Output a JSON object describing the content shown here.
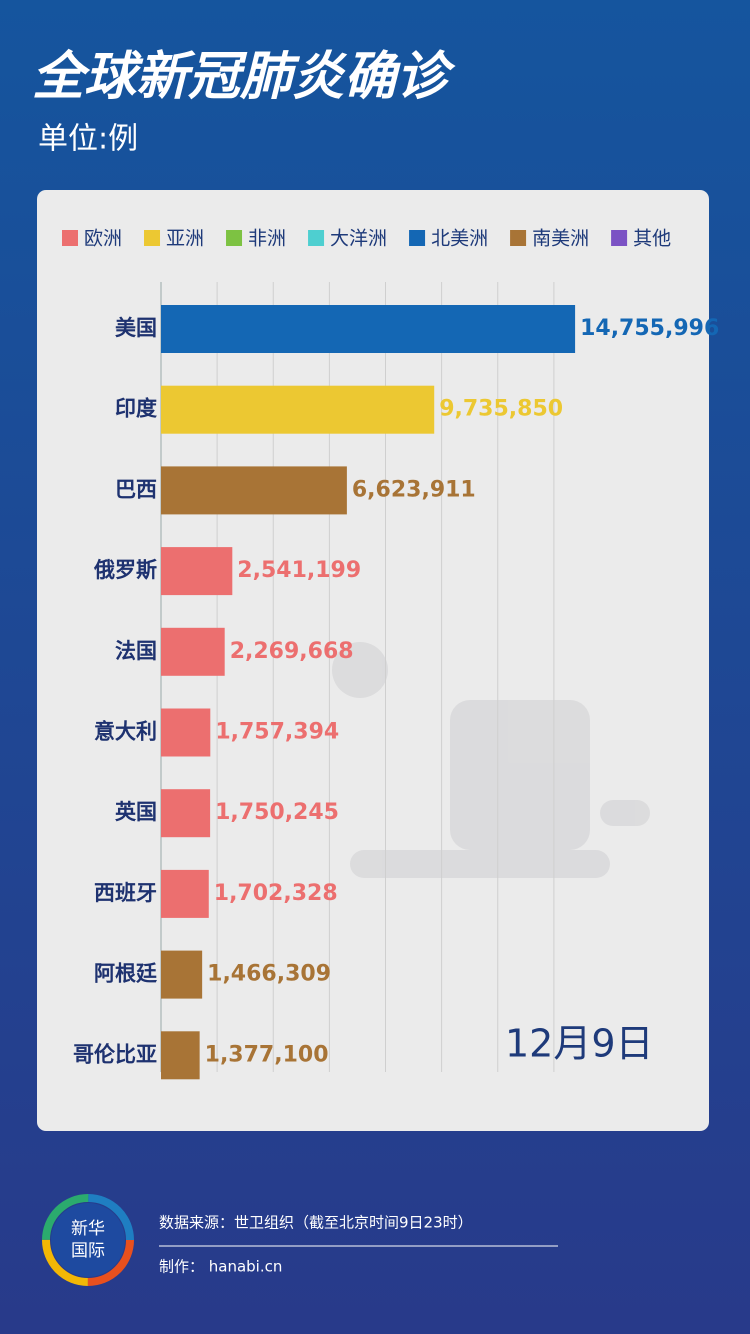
{
  "chart_data": {
    "type": "bar",
    "orientation": "horizontal",
    "title": "全球新冠肺炎确诊",
    "subtitle": "单位:例",
    "legend": [
      {
        "name": "欧洲",
        "color": "#ec6f6f"
      },
      {
        "name": "亚洲",
        "color": "#ecc832"
      },
      {
        "name": "非洲",
        "color": "#7dc242"
      },
      {
        "name": "大洋洲",
        "color": "#4ecfd0"
      },
      {
        "name": "北美洲",
        "color": "#1467b4"
      },
      {
        "name": "南美洲",
        "color": "#a87436"
      },
      {
        "name": "其他",
        "color": "#7b52c4"
      }
    ],
    "categories": [
      "美国",
      "印度",
      "巴西",
      "俄罗斯",
      "法国",
      "意大利",
      "英国",
      "西班牙",
      "阿根廷",
      "哥伦比亚"
    ],
    "values": [
      14755996,
      9735850,
      6623911,
      2541199,
      2269668,
      1757394,
      1750245,
      1702328,
      1466309,
      1377100
    ],
    "value_labels": [
      "14,755,996",
      "9,735,850",
      "6,623,911",
      "2,541,199",
      "2,269,668",
      "1,757,394",
      "1,750,245",
      "1,702,328",
      "1,466,309",
      "1,377,100"
    ],
    "colors": [
      "#1467b4",
      "#ecc832",
      "#a87436",
      "#ec6f6f",
      "#ec6f6f",
      "#ec6f6f",
      "#ec6f6f",
      "#ec6f6f",
      "#a87436",
      "#a87436"
    ],
    "xlim": [
      0,
      16000000
    ],
    "xticks": [
      0,
      2000000,
      4000000,
      6000000,
      8000000,
      10000000,
      12000000,
      14000000
    ],
    "grid": true,
    "date": "12月9日"
  },
  "footer": {
    "logo": [
      "新华",
      "国际"
    ],
    "source": "数据来源：世卫组织（截至北京时间9日23时）",
    "credit": "制作： hanabi.cn"
  }
}
